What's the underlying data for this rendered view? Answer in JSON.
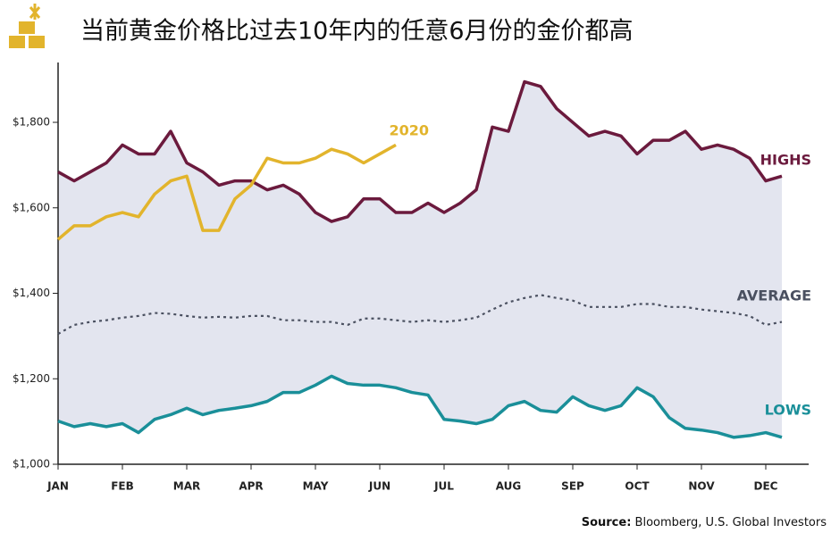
{
  "chart_data": {
    "type": "line",
    "title": "当前黄金价格比过去10年内的任意6月份的金价都高",
    "source_label": "Source:",
    "source_text": " Bloomberg, U.S. Global Investors",
    "categories": [
      "JAN",
      null,
      null,
      null,
      "FEB",
      null,
      null,
      null,
      "MAR",
      null,
      null,
      null,
      "APR",
      null,
      null,
      null,
      "MAY",
      null,
      null,
      null,
      "JUN",
      null,
      null,
      null,
      "JUL",
      null,
      null,
      null,
      "AUG",
      null,
      null,
      null,
      "SEP",
      null,
      null,
      null,
      "OCT",
      null,
      null,
      null,
      "NOV",
      null,
      null,
      null,
      "DEC",
      null
    ],
    "ylim": [
      1000,
      1940
    ],
    "yticks": [
      {
        "value": 1000,
        "label": "$1,000"
      },
      {
        "value": 1200,
        "label": "$1,200"
      },
      {
        "value": 1400,
        "label": "$1,400"
      },
      {
        "value": 1600,
        "label": "$1,600"
      },
      {
        "value": 1800,
        "label": "$1,800"
      }
    ],
    "band_color": "#e3e5ef",
    "series": [
      {
        "name": "HIGHS",
        "color": "#6b1a3d",
        "values": [
          1684,
          1663,
          1684,
          1705,
          1747,
          1726,
          1726,
          1779,
          1705,
          1684,
          1653,
          1663,
          1663,
          1642,
          1653,
          1632,
          1589,
          1568,
          1579,
          1621,
          1621,
          1589,
          1589,
          1611,
          1589,
          1611,
          1642,
          1789,
          1779,
          1895,
          1884,
          1832,
          1800,
          1768,
          1779,
          1768,
          1726,
          1758,
          1758,
          1779,
          1737,
          1747,
          1737,
          1716,
          1663,
          1674
        ]
      },
      {
        "name": "AVERAGE",
        "color": "#4a5060",
        "dashed": true,
        "values": [
          1305,
          1326,
          1333,
          1337,
          1343,
          1347,
          1354,
          1352,
          1347,
          1343,
          1345,
          1343,
          1347,
          1347,
          1337,
          1337,
          1333,
          1333,
          1326,
          1341,
          1341,
          1337,
          1333,
          1337,
          1333,
          1337,
          1343,
          1362,
          1379,
          1389,
          1396,
          1389,
          1383,
          1368,
          1368,
          1368,
          1375,
          1375,
          1368,
          1368,
          1362,
          1358,
          1354,
          1347,
          1326,
          1333
        ]
      },
      {
        "name": "LOWS",
        "color": "#1a8f99",
        "values": [
          1101,
          1088,
          1095,
          1088,
          1095,
          1074,
          1105,
          1116,
          1131,
          1116,
          1126,
          1131,
          1137,
          1147,
          1168,
          1168,
          1185,
          1206,
          1189,
          1185,
          1185,
          1179,
          1168,
          1162,
          1105,
          1101,
          1095,
          1105,
          1137,
          1147,
          1126,
          1122,
          1158,
          1137,
          1126,
          1137,
          1179,
          1158,
          1109,
          1084,
          1080,
          1074,
          1063,
          1067,
          1074,
          1063
        ]
      },
      {
        "name": "2020",
        "color": "#e2b42c",
        "values": [
          1526,
          1558,
          1558,
          1579,
          1589,
          1579,
          1632,
          1663,
          1674,
          1547,
          1547,
          1621,
          1653,
          1716,
          1705,
          1705,
          1716,
          1737,
          1726,
          1705,
          1726,
          1747,
          null,
          null,
          null,
          null,
          null,
          null,
          null,
          null,
          null,
          null,
          null,
          null,
          null,
          null,
          null,
          null,
          null,
          null,
          null,
          null,
          null,
          null,
          null,
          null
        ]
      }
    ]
  }
}
